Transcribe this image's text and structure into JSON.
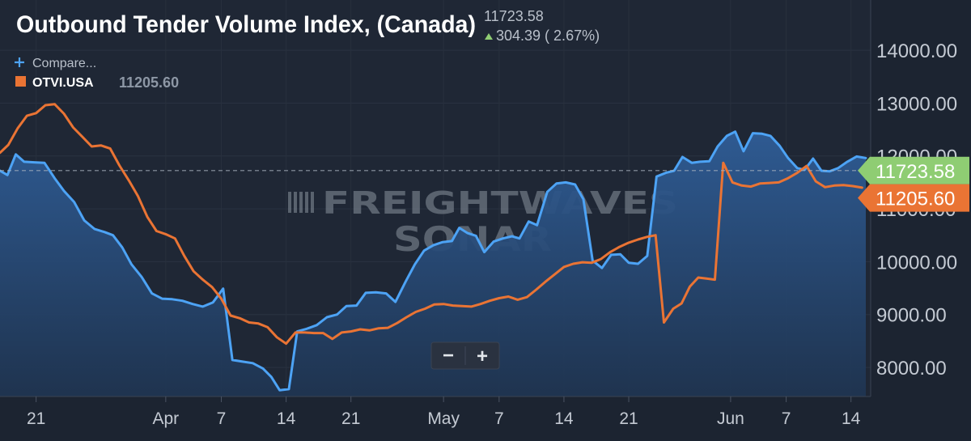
{
  "header": {
    "title": "Outbound Tender Volume Index, (Canada)",
    "last_value": "11723.58",
    "change": "304.39 ( 2.67%)"
  },
  "legend": {
    "compare_label": "Compare...",
    "series_symbol": "OTVI.USA",
    "series_value": "11205.60"
  },
  "price_tags": {
    "primary": "11723.58",
    "secondary": "11205.60"
  },
  "watermark": {
    "brand": "FREIGHTWAVES",
    "sub": "SONAR"
  },
  "zoom": {
    "minus": "−",
    "plus": "+"
  },
  "colors": {
    "background": "#1c2431",
    "primary_line": "#4da3f5",
    "secondary_line": "#ea7434",
    "primary_tag": "#8fcd73",
    "secondary_tag": "#ea7434",
    "up_arrow": "#8fcd73"
  },
  "chart_data": {
    "type": "line",
    "title": "Outbound Tender Volume Index, (Canada)",
    "ylim": [
      7450,
      14950
    ],
    "y_ticks": [
      {
        "value": 8000,
        "label": "8000.00"
      },
      {
        "value": 9000,
        "label": "9000.00"
      },
      {
        "value": 10000,
        "label": "10000.00"
      },
      {
        "value": 11000,
        "label": "11000.00"
      },
      {
        "value": 12000,
        "label": "12000.00"
      },
      {
        "value": 13000,
        "label": "13000.00"
      },
      {
        "value": 14000,
        "label": "14000.00"
      }
    ],
    "x_ticks": [
      {
        "day": -3,
        "label": "21"
      },
      {
        "day": 11,
        "label": "Apr"
      },
      {
        "day": 17,
        "label": "7"
      },
      {
        "day": 24,
        "label": "14"
      },
      {
        "day": 31,
        "label": "21"
      },
      {
        "day": 41,
        "label": "May"
      },
      {
        "day": 47,
        "label": "7"
      },
      {
        "day": 54,
        "label": "14"
      },
      {
        "day": 61,
        "label": "21"
      },
      {
        "day": 72,
        "label": "Jun"
      },
      {
        "day": 78,
        "label": "7"
      },
      {
        "day": 85,
        "label": "14"
      }
    ],
    "xlim": [
      -6.9,
      86.6
    ],
    "reference_line": 11723.58,
    "series": [
      {
        "name": "Outbound Tender Volume Index, (Canada)",
        "fill": true,
        "points": [
          [
            -6.9,
            11720
          ],
          [
            -6.1,
            11640
          ],
          [
            -5.2,
            12030
          ],
          [
            -4.3,
            11890
          ],
          [
            -3.2,
            11880
          ],
          [
            -2.1,
            11870
          ],
          [
            -1,
            11580
          ],
          [
            0,
            11340
          ],
          [
            1.1,
            11130
          ],
          [
            2.2,
            10780
          ],
          [
            3.3,
            10620
          ],
          [
            4.4,
            10560
          ],
          [
            5.3,
            10500
          ],
          [
            6.3,
            10270
          ],
          [
            7.3,
            9950
          ],
          [
            8.4,
            9710
          ],
          [
            9.5,
            9400
          ],
          [
            10.6,
            9300
          ],
          [
            11.7,
            9290
          ],
          [
            12.8,
            9260
          ],
          [
            13.9,
            9200
          ],
          [
            15,
            9150
          ],
          [
            16.1,
            9230
          ],
          [
            17.2,
            9490
          ],
          [
            18.2,
            8140
          ],
          [
            19.3,
            8110
          ],
          [
            20.4,
            8080
          ],
          [
            21.5,
            7980
          ],
          [
            22.4,
            7820
          ],
          [
            23.3,
            7570
          ],
          [
            24.3,
            7590
          ],
          [
            25.2,
            8680
          ],
          [
            26.2,
            8730
          ],
          [
            27.3,
            8800
          ],
          [
            28.4,
            8950
          ],
          [
            29.5,
            9000
          ],
          [
            30.5,
            9160
          ],
          [
            31.6,
            9170
          ],
          [
            32.6,
            9410
          ],
          [
            33.7,
            9420
          ],
          [
            34.8,
            9400
          ],
          [
            35.8,
            9240
          ],
          [
            36.9,
            9620
          ],
          [
            37.9,
            9950
          ],
          [
            38.9,
            10210
          ],
          [
            39.9,
            10310
          ],
          [
            40.9,
            10370
          ],
          [
            41.9,
            10390
          ],
          [
            42.7,
            10640
          ],
          [
            43.6,
            10540
          ],
          [
            44.5,
            10490
          ],
          [
            45.4,
            10180
          ],
          [
            46.4,
            10380
          ],
          [
            47.4,
            10440
          ],
          [
            48.4,
            10480
          ],
          [
            49.2,
            10440
          ],
          [
            50.2,
            10760
          ],
          [
            51.1,
            10690
          ],
          [
            52.2,
            11320
          ],
          [
            53.2,
            11480
          ],
          [
            54.2,
            11500
          ],
          [
            55.2,
            11460
          ],
          [
            56.1,
            11180
          ],
          [
            57.1,
            10020
          ],
          [
            58.1,
            9880
          ],
          [
            59.1,
            10130
          ],
          [
            60.1,
            10140
          ],
          [
            61,
            9980
          ],
          [
            62,
            9960
          ],
          [
            63,
            10110
          ],
          [
            64,
            11610
          ],
          [
            65,
            11680
          ],
          [
            65.9,
            11720
          ],
          [
            66.8,
            11980
          ],
          [
            67.8,
            11870
          ],
          [
            68.7,
            11890
          ],
          [
            69.7,
            11900
          ],
          [
            70.6,
            12180
          ],
          [
            71.6,
            12380
          ],
          [
            72.5,
            12460
          ],
          [
            73.4,
            12090
          ],
          [
            74.4,
            12430
          ],
          [
            75.4,
            12420
          ],
          [
            76.3,
            12380
          ],
          [
            77.3,
            12190
          ],
          [
            78.2,
            11960
          ],
          [
            79.2,
            11770
          ],
          [
            80,
            11740
          ],
          [
            80.9,
            11950
          ],
          [
            81.8,
            11720
          ],
          [
            82.7,
            11710
          ],
          [
            83.6,
            11770
          ],
          [
            84.6,
            11890
          ],
          [
            85.6,
            11990
          ],
          [
            86.6,
            11960
          ]
        ]
      },
      {
        "name": "OTVI.USA",
        "fill": false,
        "points": [
          [
            -6.9,
            12060
          ],
          [
            -6,
            12210
          ],
          [
            -5,
            12520
          ],
          [
            -4,
            12760
          ],
          [
            -3,
            12810
          ],
          [
            -2,
            12960
          ],
          [
            -1,
            12980
          ],
          [
            0,
            12800
          ],
          [
            1,
            12540
          ],
          [
            2,
            12360
          ],
          [
            3,
            12180
          ],
          [
            4,
            12200
          ],
          [
            5,
            12140
          ],
          [
            6,
            11820
          ],
          [
            7,
            11540
          ],
          [
            8,
            11240
          ],
          [
            9,
            10850
          ],
          [
            10,
            10580
          ],
          [
            11,
            10520
          ],
          [
            12,
            10440
          ],
          [
            13,
            10110
          ],
          [
            14,
            9820
          ],
          [
            15,
            9660
          ],
          [
            16,
            9520
          ],
          [
            17,
            9300
          ],
          [
            18,
            8980
          ],
          [
            19,
            8930
          ],
          [
            20,
            8850
          ],
          [
            21,
            8830
          ],
          [
            22,
            8760
          ],
          [
            23,
            8570
          ],
          [
            24,
            8450
          ],
          [
            25,
            8660
          ],
          [
            26,
            8660
          ],
          [
            27,
            8650
          ],
          [
            28,
            8650
          ],
          [
            29,
            8540
          ],
          [
            30,
            8660
          ],
          [
            31,
            8680
          ],
          [
            32,
            8720
          ],
          [
            33,
            8700
          ],
          [
            34,
            8740
          ],
          [
            35,
            8750
          ],
          [
            36,
            8840
          ],
          [
            37,
            8950
          ],
          [
            38,
            9050
          ],
          [
            39,
            9110
          ],
          [
            40,
            9190
          ],
          [
            41,
            9200
          ],
          [
            42,
            9170
          ],
          [
            43,
            9160
          ],
          [
            44,
            9150
          ],
          [
            45,
            9200
          ],
          [
            46,
            9260
          ],
          [
            47,
            9310
          ],
          [
            48,
            9340
          ],
          [
            49,
            9280
          ],
          [
            50,
            9330
          ],
          [
            51,
            9470
          ],
          [
            52,
            9620
          ],
          [
            53,
            9760
          ],
          [
            54,
            9900
          ],
          [
            55,
            9960
          ],
          [
            56,
            9990
          ],
          [
            57,
            9980
          ],
          [
            58,
            10050
          ],
          [
            59,
            10180
          ],
          [
            60,
            10280
          ],
          [
            61,
            10360
          ],
          [
            62,
            10420
          ],
          [
            63,
            10470
          ],
          [
            63.9,
            10500
          ],
          [
            64.8,
            8850
          ],
          [
            65.8,
            9110
          ],
          [
            66.7,
            9210
          ],
          [
            67.6,
            9530
          ],
          [
            68.5,
            9700
          ],
          [
            69.4,
            9680
          ],
          [
            70.3,
            9660
          ],
          [
            71.2,
            11870
          ],
          [
            72.2,
            11500
          ],
          [
            73.2,
            11440
          ],
          [
            74.2,
            11420
          ],
          [
            75.2,
            11480
          ],
          [
            76.2,
            11490
          ],
          [
            77.2,
            11500
          ],
          [
            78.2,
            11580
          ],
          [
            79.2,
            11680
          ],
          [
            80.2,
            11810
          ],
          [
            81.2,
            11520
          ],
          [
            82.2,
            11410
          ],
          [
            83.2,
            11440
          ],
          [
            84.2,
            11450
          ],
          [
            85.2,
            11430
          ],
          [
            86.2,
            11400
          ]
        ]
      }
    ]
  }
}
